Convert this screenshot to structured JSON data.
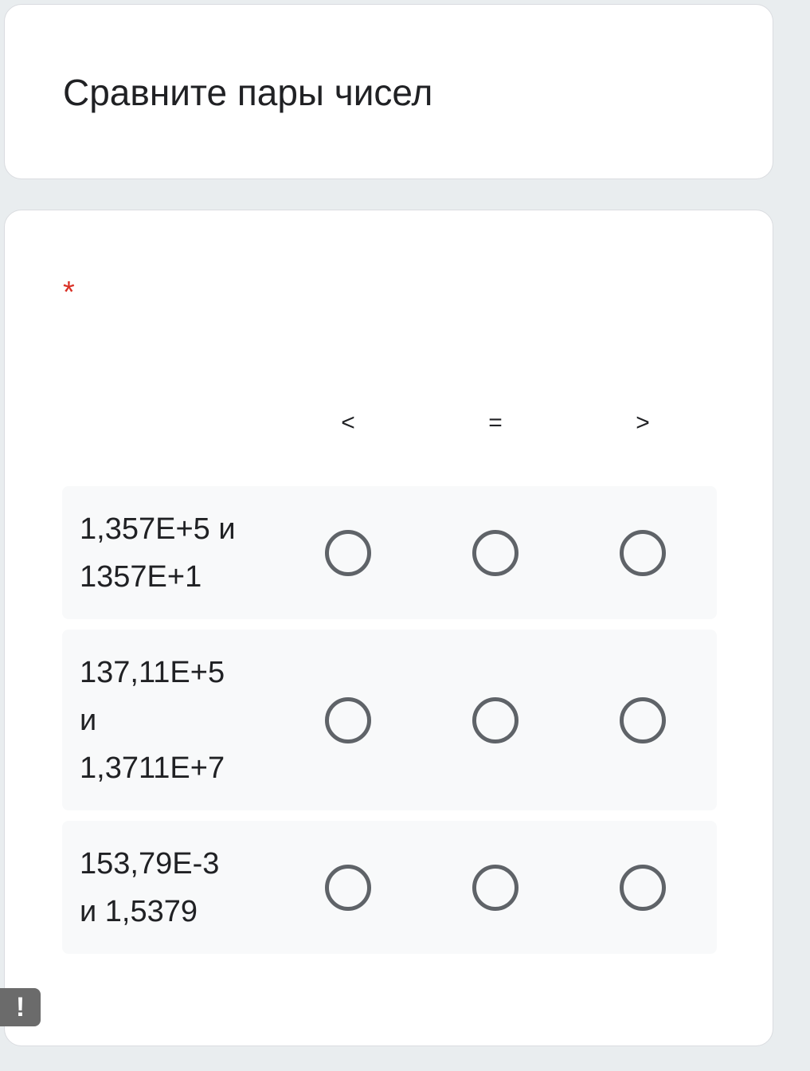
{
  "form": {
    "title": "Сравните пары чисел"
  },
  "question": {
    "required_mark": "*",
    "columns": [
      "<",
      "=",
      ">"
    ],
    "rows": [
      {
        "label_lines": [
          "1,357E+5 и",
          "1357E+1"
        ],
        "selected": null
      },
      {
        "label_lines": [
          "137,11E+5",
          "и",
          "1,3711E+7"
        ],
        "selected": null
      },
      {
        "label_lines": [
          "153,79E-3",
          "и 1,5379"
        ],
        "selected": null
      }
    ]
  },
  "report_button": {
    "icon": "exclamation-icon",
    "label": "!"
  },
  "colors": {
    "required": "#d93025",
    "radio": "#5f6368",
    "background": "#e9edef",
    "row": "#f8f9fa"
  }
}
